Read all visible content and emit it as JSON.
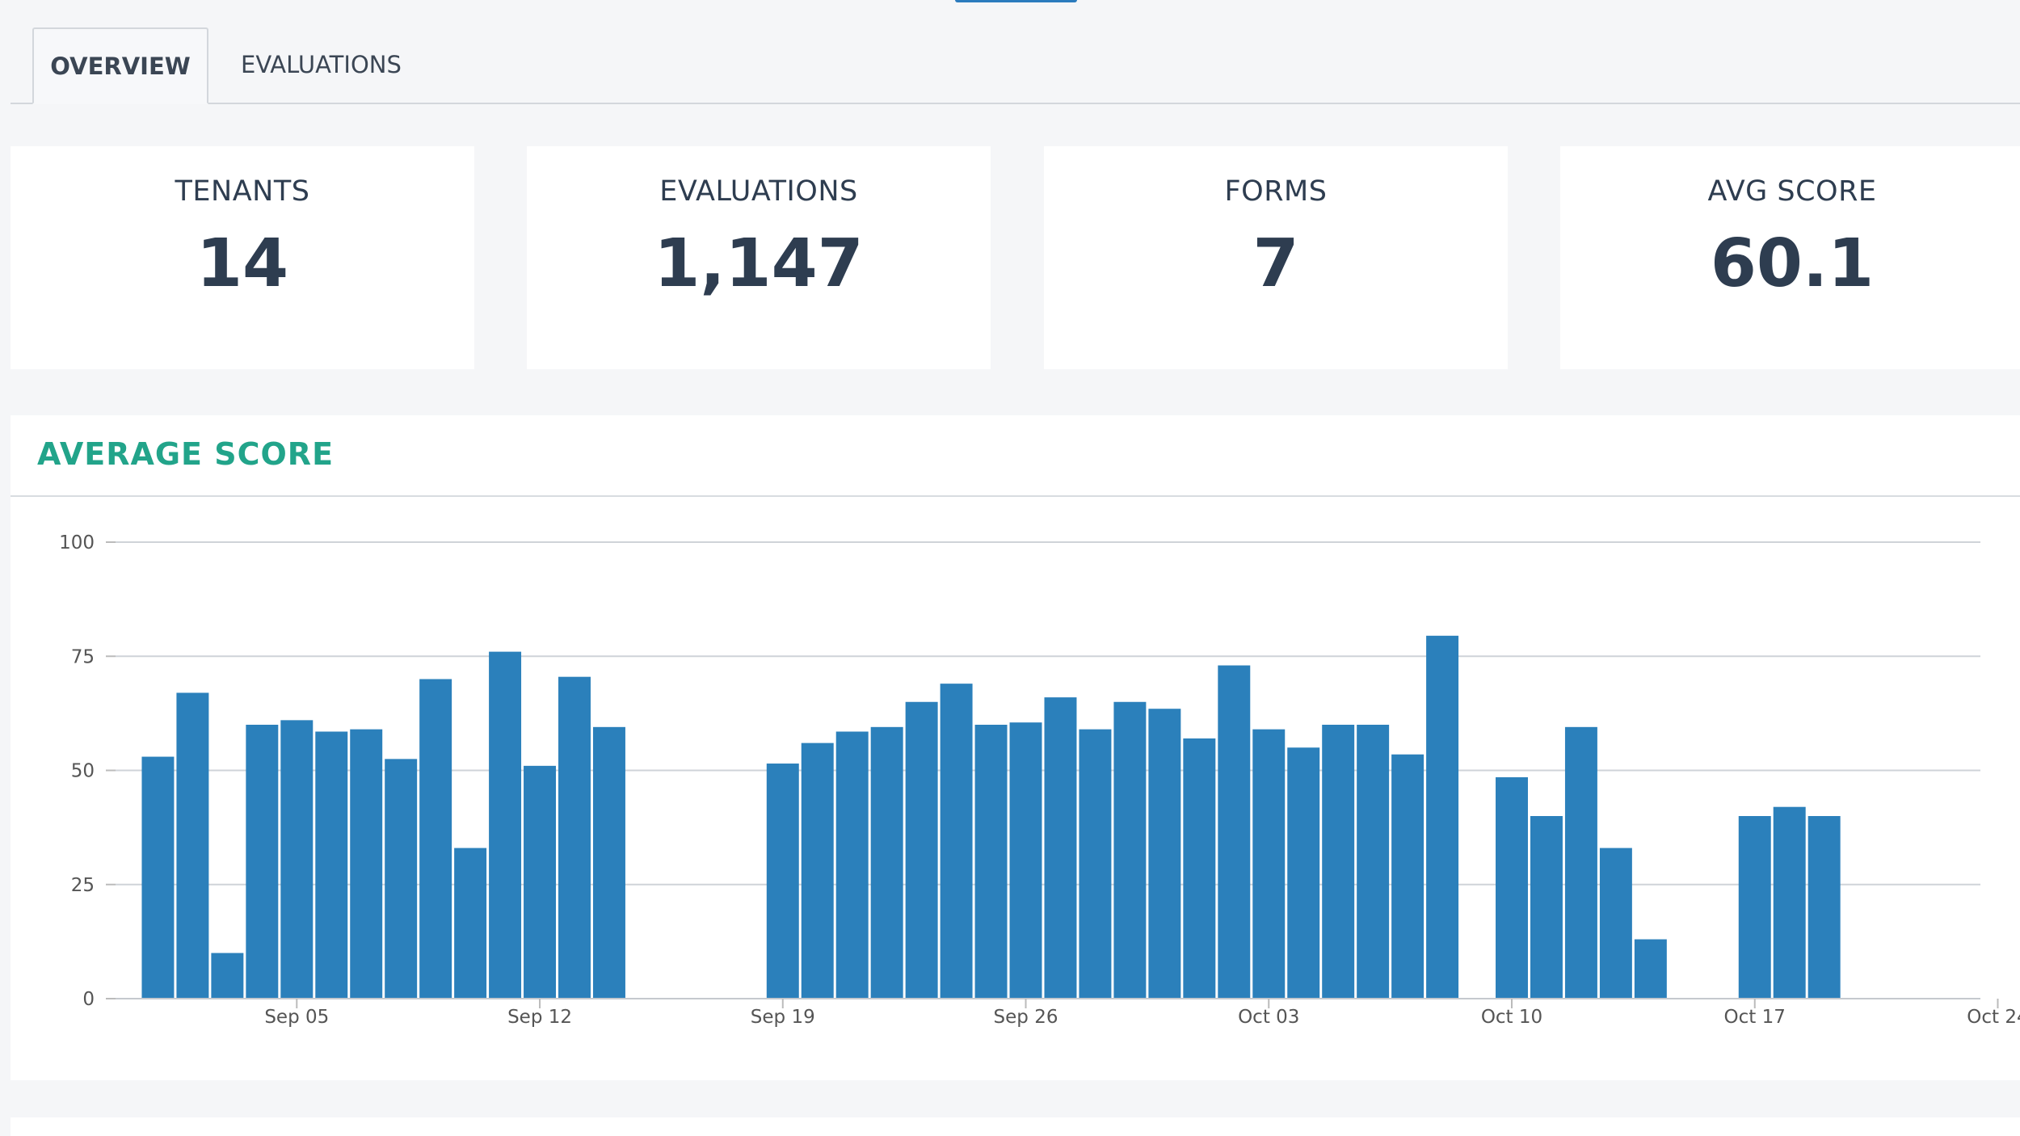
{
  "tabs": [
    {
      "label": "OVERVIEW",
      "active": true
    },
    {
      "label": "EVALUATIONS",
      "active": false
    }
  ],
  "stats": [
    {
      "label": "TENANTS",
      "value": "14"
    },
    {
      "label": "EVALUATIONS",
      "value": "1,147"
    },
    {
      "label": "FORMS",
      "value": "7"
    },
    {
      "label": "AVG SCORE",
      "value": "60.1"
    }
  ],
  "panel": {
    "title": "AVERAGE SCORE"
  },
  "colors": {
    "bar": "#2b80bb",
    "title": "#22a48a",
    "text": "#2e3d50"
  },
  "chart_data": {
    "type": "bar",
    "title": "AVERAGE SCORE",
    "xlabel": "",
    "ylabel": "",
    "ylim": [
      0,
      100
    ],
    "yticks": [
      0,
      25,
      50,
      75,
      100
    ],
    "xticks": [
      "Sep 05",
      "Sep 12",
      "Sep 19",
      "Sep 26",
      "Oct 03",
      "Oct 10",
      "Oct 17",
      "Oct 24"
    ],
    "x_range": [
      "2023-08-31",
      "2023-10-24"
    ],
    "grid": true,
    "x": [
      "2023-09-01",
      "2023-09-02",
      "2023-09-03",
      "2023-09-04",
      "2023-09-05",
      "2023-09-06",
      "2023-09-07",
      "2023-09-08",
      "2023-09-09",
      "2023-09-10",
      "2023-09-11",
      "2023-09-12",
      "2023-09-13",
      "2023-09-14",
      "2023-09-19",
      "2023-09-20",
      "2023-09-21",
      "2023-09-22",
      "2023-09-23",
      "2023-09-24",
      "2023-09-25",
      "2023-09-26",
      "2023-09-27",
      "2023-09-28",
      "2023-09-29",
      "2023-09-30",
      "2023-10-01",
      "2023-10-02",
      "2023-10-03",
      "2023-10-04",
      "2023-10-05",
      "2023-10-06",
      "2023-10-07",
      "2023-10-08",
      "2023-10-10",
      "2023-10-11",
      "2023-10-12",
      "2023-10-13",
      "2023-10-14",
      "2023-10-17",
      "2023-10-18",
      "2023-10-19"
    ],
    "values": [
      53,
      67,
      10,
      60,
      61,
      58.5,
      59,
      52.5,
      70,
      33,
      76,
      51,
      70.5,
      59.5,
      51.5,
      56,
      58.5,
      59.5,
      65,
      69,
      60,
      60.5,
      66,
      59,
      65,
      63.5,
      57,
      73,
      59,
      55,
      60,
      60,
      53.5,
      79.5,
      48.5,
      40,
      59.5,
      33,
      13,
      40,
      42,
      40
    ]
  }
}
